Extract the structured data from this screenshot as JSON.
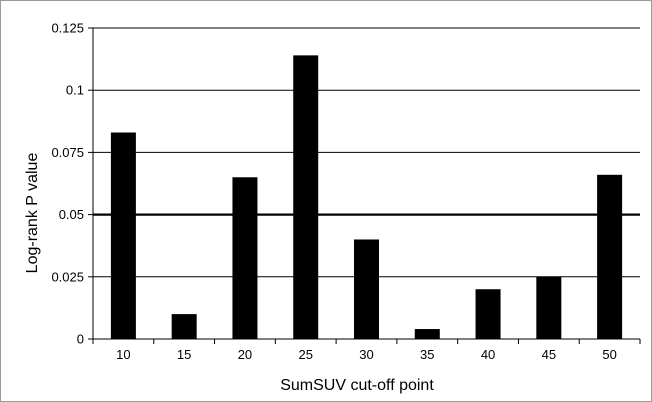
{
  "chart_data": {
    "type": "bar",
    "title": "",
    "xlabel": "SumSUV cut-off point",
    "ylabel": "Log-rank P value",
    "categories": [
      "10",
      "15",
      "20",
      "25",
      "30",
      "35",
      "40",
      "45",
      "50"
    ],
    "values": [
      0.083,
      0.01,
      0.065,
      0.114,
      0.04,
      0.004,
      0.02,
      0.025,
      0.066
    ],
    "ylim": [
      0,
      0.125
    ],
    "yticks": [
      "0",
      "0.025",
      "0.05",
      "0.075",
      "0.1",
      "0.125"
    ],
    "ytick_values": [
      0,
      0.025,
      0.05,
      0.075,
      0.1,
      0.125
    ],
    "reference_line": 0.05,
    "grid": true,
    "bar_color": "#000000"
  }
}
